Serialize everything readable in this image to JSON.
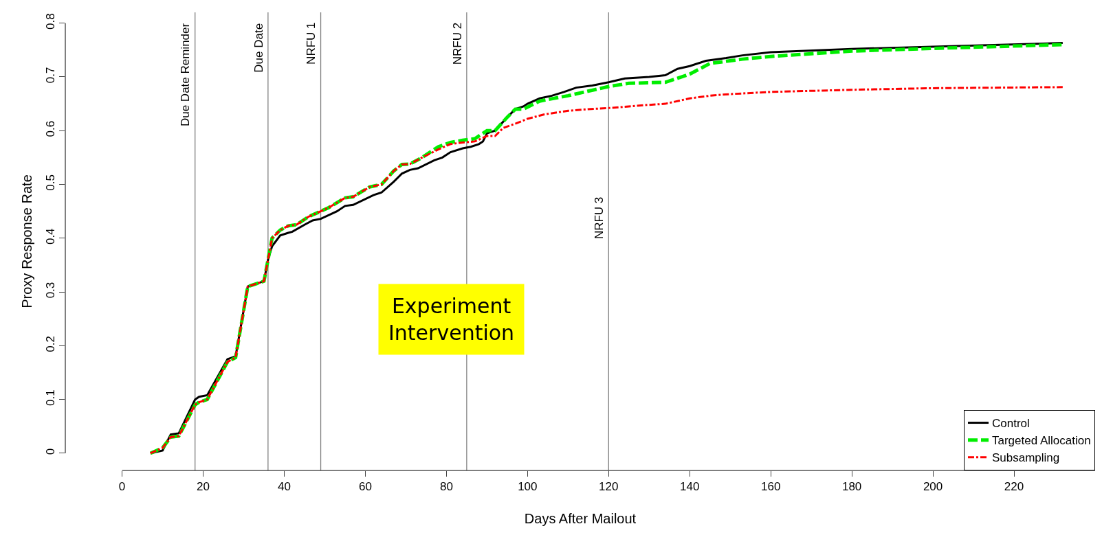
{
  "chart_data": {
    "type": "line",
    "xlabel": "Days After Mailout",
    "ylabel": "Proxy Response Rate",
    "xlim": [
      -14,
      240
    ],
    "xticks": [
      0,
      20,
      40,
      60,
      80,
      100,
      120,
      140,
      160,
      180,
      200,
      220
    ],
    "ylim": [
      -0.032,
      0.82
    ],
    "yticks": [
      0,
      0.1,
      0.2,
      0.3,
      0.4,
      0.5,
      0.6,
      0.7,
      0.8
    ],
    "grid": false,
    "legend": "bottom right",
    "marker": "none",
    "series": [
      {
        "name": "Control",
        "color": "#000000",
        "line_style": "solid",
        "x": [
          7,
          10,
          12,
          14,
          18,
          19,
          21,
          26,
          28,
          31,
          33,
          35,
          36,
          37,
          39,
          41,
          42,
          45,
          47,
          49,
          53,
          55,
          57,
          62,
          64,
          67,
          69,
          71,
          73,
          77,
          79,
          81,
          84,
          86,
          88,
          89,
          90,
          92,
          95,
          97,
          99,
          100,
          103,
          106,
          109,
          112,
          116,
          120,
          124,
          130,
          134,
          137,
          140,
          144,
          149,
          153,
          160,
          180,
          200,
          232
        ],
        "values": [
          0,
          0.005,
          0.035,
          0.037,
          0.1,
          0.105,
          0.108,
          0.175,
          0.18,
          0.31,
          0.315,
          0.32,
          0.36,
          0.385,
          0.405,
          0.41,
          0.412,
          0.425,
          0.433,
          0.436,
          0.45,
          0.46,
          0.462,
          0.48,
          0.485,
          0.505,
          0.52,
          0.527,
          0.53,
          0.545,
          0.55,
          0.56,
          0.567,
          0.57,
          0.575,
          0.58,
          0.595,
          0.6,
          0.625,
          0.64,
          0.645,
          0.65,
          0.66,
          0.665,
          0.672,
          0.68,
          0.684,
          0.69,
          0.697,
          0.7,
          0.703,
          0.715,
          0.72,
          0.73,
          0.735,
          0.74,
          0.746,
          0.752,
          0.756,
          0.763
        ]
      },
      {
        "name": "Targeted Allocation",
        "color": "#00ee00",
        "line_style": "dashed",
        "x": [
          7,
          10,
          12,
          14,
          18,
          19,
          21,
          26,
          28,
          31,
          33,
          35,
          37,
          39,
          41,
          43,
          46,
          49,
          51,
          55,
          57,
          61,
          64,
          67,
          69,
          71,
          74,
          78,
          81,
          84,
          87,
          90,
          92,
          95,
          97,
          99,
          103,
          110,
          120,
          125,
          134,
          140,
          145,
          153,
          160,
          180,
          200,
          232
        ],
        "values": [
          0,
          0.01,
          0.03,
          0.032,
          0.09,
          0.095,
          0.1,
          0.17,
          0.178,
          0.31,
          0.315,
          0.32,
          0.4,
          0.415,
          0.423,
          0.425,
          0.44,
          0.45,
          0.457,
          0.475,
          0.477,
          0.495,
          0.5,
          0.525,
          0.537,
          0.538,
          0.55,
          0.57,
          0.578,
          0.582,
          0.585,
          0.6,
          0.6,
          0.625,
          0.64,
          0.64,
          0.655,
          0.665,
          0.682,
          0.688,
          0.69,
          0.705,
          0.725,
          0.733,
          0.738,
          0.748,
          0.753,
          0.76
        ]
      },
      {
        "name": "Subsampling",
        "color": "#ff0000",
        "line_style": "dashdot",
        "x": [
          7,
          10,
          12,
          14,
          18,
          19,
          21,
          26,
          28,
          31,
          33,
          35,
          37,
          39,
          41,
          43,
          46,
          49,
          51,
          55,
          57,
          61,
          64,
          67,
          69,
          71,
          74,
          78,
          81,
          84,
          87,
          90,
          92,
          94,
          97,
          100,
          104,
          110,
          115,
          120,
          128,
          134,
          140,
          145,
          150,
          160,
          180,
          200,
          232
        ],
        "values": [
          0,
          0.01,
          0.03,
          0.032,
          0.09,
          0.095,
          0.1,
          0.17,
          0.178,
          0.31,
          0.315,
          0.32,
          0.4,
          0.415,
          0.423,
          0.425,
          0.44,
          0.45,
          0.457,
          0.475,
          0.477,
          0.495,
          0.5,
          0.525,
          0.537,
          0.538,
          0.55,
          0.565,
          0.575,
          0.578,
          0.58,
          0.59,
          0.59,
          0.605,
          0.613,
          0.622,
          0.63,
          0.637,
          0.64,
          0.642,
          0.647,
          0.65,
          0.66,
          0.665,
          0.668,
          0.672,
          0.676,
          0.679,
          0.681
        ]
      }
    ],
    "ref_lines": [
      {
        "axis": "x",
        "value": 18,
        "label": "Due Date Reminder",
        "color": "#808080"
      },
      {
        "axis": "x",
        "value": 36,
        "label": "Due Date",
        "color": "#808080"
      },
      {
        "axis": "x",
        "value": 49,
        "label": "NRFU 1",
        "color": "#808080"
      },
      {
        "axis": "x",
        "value": 85,
        "label": "NRFU 2",
        "color": "#808080"
      },
      {
        "axis": "x",
        "value": 120,
        "label": "NRFU 3",
        "color": "#808080"
      }
    ],
    "annotations": [
      "Experiment\nIntervention"
    ]
  }
}
